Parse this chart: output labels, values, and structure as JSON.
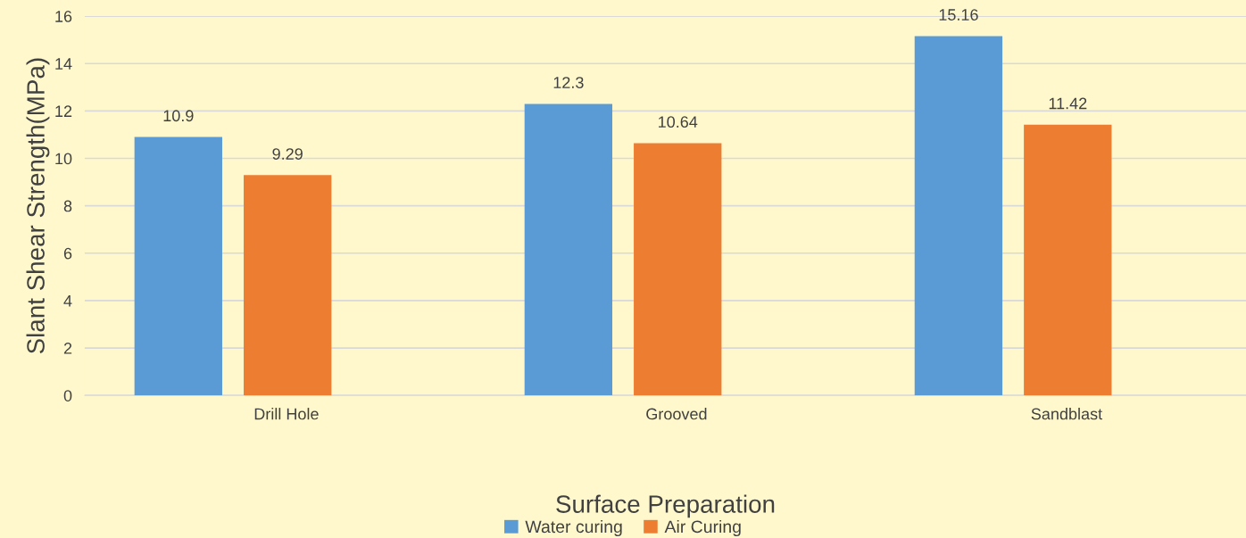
{
  "chart_data": {
    "type": "bar",
    "xlabel": "Surface Preparation",
    "ylabel": "Slant Shear Strength(MPa)",
    "categories": [
      "Drill Hole",
      "Grooved",
      "Sandblast"
    ],
    "series": [
      {
        "name": "Water curing",
        "color": "#5b9bd5",
        "values": [
          10.9,
          12.3,
          15.16
        ]
      },
      {
        "name": "Air Curing",
        "color": "#ed7d31",
        "values": [
          9.29,
          10.64,
          11.42
        ]
      }
    ],
    "ylim": [
      0,
      16
    ],
    "yticks": [
      0,
      2,
      4,
      6,
      8,
      10,
      12,
      14,
      16
    ],
    "grid": "y",
    "legend": "bottom",
    "data_labels": true
  }
}
